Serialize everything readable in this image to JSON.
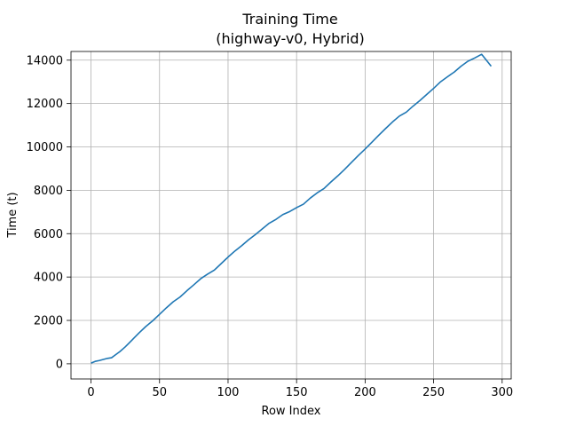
{
  "chart_data": {
    "type": "line",
    "title": [
      "Training Time",
      "(highway-v0, Hybrid)"
    ],
    "xlabel": "Row Index",
    "ylabel": "Time (t)",
    "xlim": [
      -14.6,
      306.6
    ],
    "ylim": [
      -700,
      14400
    ],
    "xticks": [
      0,
      50,
      100,
      150,
      200,
      250,
      300
    ],
    "yticks": [
      0,
      2000,
      4000,
      6000,
      8000,
      10000,
      12000,
      14000
    ],
    "grid": true,
    "color": "#1f77b4",
    "series": [
      {
        "x": [
          0,
          3,
          6,
          9,
          12,
          15,
          18,
          21,
          25,
          30,
          35,
          40,
          45,
          50,
          55,
          60,
          65,
          70,
          75,
          80,
          85,
          90,
          95,
          100,
          105,
          110,
          115,
          120,
          125,
          130,
          135,
          140,
          145,
          150,
          155,
          160,
          165,
          170,
          175,
          180,
          185,
          190,
          195,
          200,
          205,
          210,
          215,
          220,
          225,
          230,
          235,
          240,
          245,
          250,
          255,
          260,
          265,
          270,
          275,
          280,
          285,
          292
        ],
        "y": [
          30,
          110,
          150,
          200,
          250,
          280,
          420,
          560,
          780,
          1100,
          1420,
          1720,
          1980,
          2280,
          2580,
          2860,
          3080,
          3370,
          3640,
          3920,
          4130,
          4320,
          4620,
          4920,
          5200,
          5450,
          5720,
          5960,
          6220,
          6480,
          6660,
          6880,
          7020,
          7200,
          7360,
          7640,
          7880,
          8080,
          8380,
          8660,
          8960,
          9280,
          9600,
          9900,
          10220,
          10540,
          10850,
          11150,
          11420,
          11600,
          11880,
          12140,
          12420,
          12700,
          13000,
          13230,
          13450,
          13720,
          13950,
          14100,
          14270,
          13720
        ]
      }
    ]
  }
}
